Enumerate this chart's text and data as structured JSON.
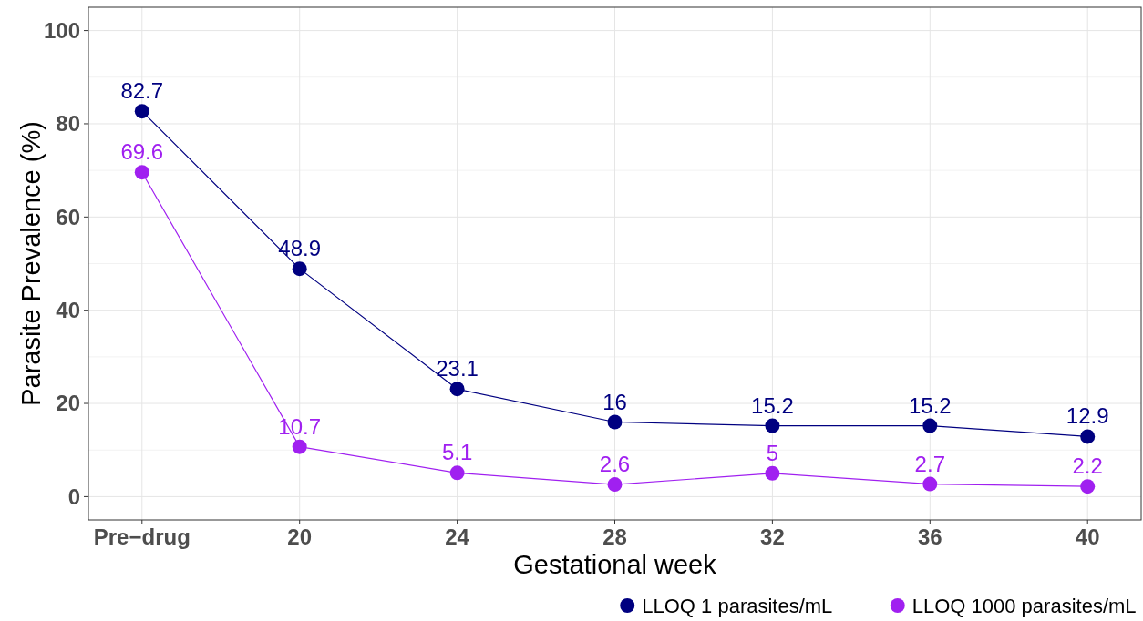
{
  "chart_data": {
    "type": "line",
    "xlabel": "Gestational week",
    "ylabel": "Parasite Prevalence (%)",
    "categories": [
      "Pre−drug",
      "20",
      "24",
      "28",
      "32",
      "36",
      "40"
    ],
    "series": [
      {
        "name": "LLOQ 1 parasites/mL",
        "color": "#000080",
        "values": [
          82.7,
          48.9,
          23.1,
          16,
          15.2,
          15.2,
          12.9
        ]
      },
      {
        "name": "LLOQ 1000 parasites/mL",
        "color": "#a020f0",
        "values": [
          69.6,
          10.7,
          5.1,
          2.6,
          5,
          2.7,
          2.2
        ]
      }
    ],
    "ylim": [
      -5,
      105
    ],
    "yticks": [
      0,
      20,
      40,
      60,
      80,
      100
    ],
    "grid": true,
    "legend": "bottom",
    "marker": "circle",
    "line_style": "solid",
    "data_labels": true
  }
}
